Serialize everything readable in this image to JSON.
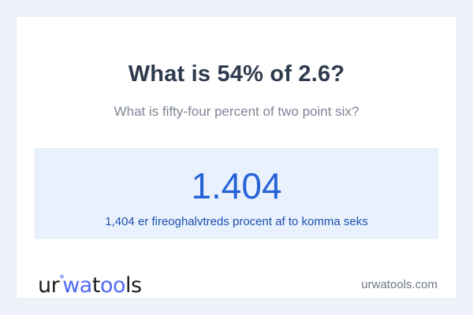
{
  "page": {
    "background_color": "#eef1f8",
    "card_color": "#ffffff"
  },
  "question": {
    "title": "What is 54% of 2.6?",
    "subtitle": "What is fifty-four percent of two point six?"
  },
  "answer": {
    "value": "1.404",
    "description": "1,404 er fireoghalvtreds procent af to komma seks",
    "box_background_color": "#e9f2fc",
    "value_color": "#2563d6",
    "description_color": "#1d4fb0"
  },
  "footer": {
    "logo": {
      "part_ur": "ur",
      "degree_mark": "°",
      "part_wa": "wa",
      "part_t": "t",
      "part_oo": "oo",
      "part_ls": "ls",
      "accent_color": "#4e6af3",
      "text_color": "#1c1c1f"
    },
    "domain": "urwatools.com"
  }
}
